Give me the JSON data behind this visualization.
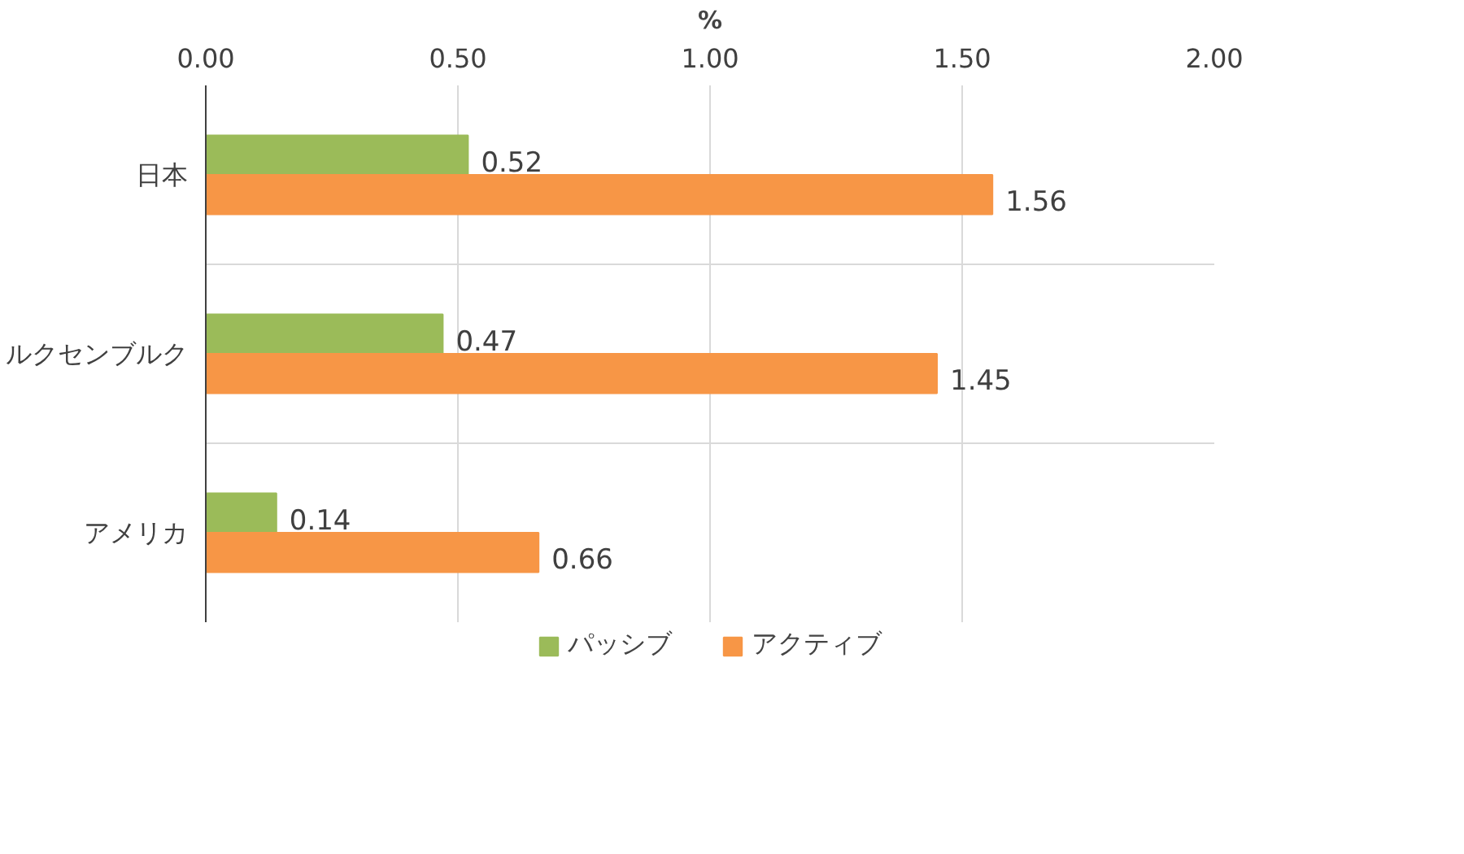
{
  "chart_data": {
    "type": "bar",
    "orientation": "horizontal",
    "xlabel": "%",
    "categories": [
      "日本",
      "ルクセンブルク",
      "アメリカ"
    ],
    "series": [
      {
        "name": "パッシブ",
        "color": "#9bbb59",
        "values": [
          0.52,
          0.47,
          0.14
        ]
      },
      {
        "name": "アクティブ",
        "color": "#f79646",
        "values": [
          1.56,
          1.45,
          0.66
        ]
      }
    ],
    "xlim": [
      0,
      2
    ],
    "xticks": [
      {
        "value": 0,
        "label": "0.00"
      },
      {
        "value": 0.5,
        "label": "0.50"
      },
      {
        "value": 1,
        "label": "1.00"
      },
      {
        "value": 1.5,
        "label": "1.50"
      },
      {
        "value": 2,
        "label": "2.00"
      }
    ],
    "data_labels": true,
    "grid": true,
    "legend": "bottom"
  }
}
